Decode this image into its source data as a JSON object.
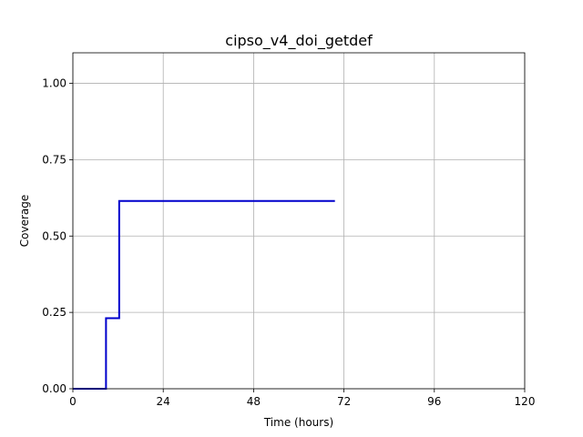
{
  "chart_data": {
    "type": "line",
    "title": "cipso_v4_doi_getdef",
    "xlabel": "Time (hours)",
    "ylabel": "Coverage",
    "xlim": [
      0,
      120
    ],
    "ylim": [
      0,
      1.1
    ],
    "xticks": [
      0,
      24,
      48,
      72,
      96,
      120
    ],
    "xtick_labels": [
      "0",
      "24",
      "48",
      "72",
      "96",
      "120"
    ],
    "yticks": [
      0,
      0.25,
      0.5,
      0.75,
      1.0
    ],
    "ytick_labels": [
      "0.00",
      "0.25",
      "0.50",
      "0.75",
      "1.00"
    ],
    "grid": true,
    "step": true,
    "series": [
      {
        "color": "#0000cc",
        "x": [
          0,
          8.8,
          8.8,
          12.3,
          12.3,
          69.6
        ],
        "y": [
          0,
          0,
          0.231,
          0.231,
          0.615,
          0.615
        ]
      }
    ]
  }
}
